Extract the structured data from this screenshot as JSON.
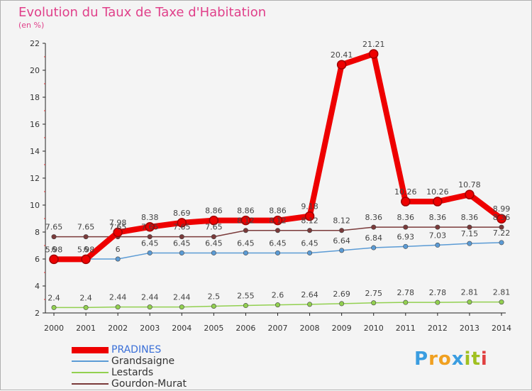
{
  "header": {
    "title": "Evolution du Taux de Taxe d'Habitation",
    "unit": "(en %)"
  },
  "brand": {
    "letters": [
      "P",
      "r",
      "o",
      "x",
      "i",
      "t",
      "i"
    ],
    "colors": [
      "#3a9de0",
      "#f0a020",
      "#f0a020",
      "#3a9de0",
      "#a0c020",
      "#a0c020",
      "#e04040"
    ]
  },
  "chart_data": {
    "type": "line",
    "title": "Evolution du Taux de Taxe d'Habitation",
    "ylabel": "(en %)",
    "xlabel": "",
    "ylim": [
      2,
      22
    ],
    "yticks": [
      2,
      4,
      6,
      8,
      10,
      12,
      14,
      16,
      18,
      20,
      22
    ],
    "grid": false,
    "legend_position": "bottom-left",
    "categories": [
      "2000",
      "2001",
      "2002",
      "2003",
      "2004",
      "2005",
      "2006",
      "2007",
      "2008",
      "2009",
      "2010",
      "2011",
      "2012",
      "2013",
      "2014"
    ],
    "series": [
      {
        "name": "PRADINES",
        "color": "#ee0000",
        "values": [
          5.98,
          5.98,
          7.98,
          8.38,
          8.69,
          8.86,
          8.86,
          8.86,
          9.18,
          20.41,
          21.21,
          10.26,
          10.26,
          10.78,
          8.99
        ],
        "labels": [
          "5.98",
          "5.98",
          "7.98",
          "8.38",
          "8.69",
          "8.86",
          "8.86",
          "8.86",
          "9.18",
          "20.41",
          "21.21",
          "10.26",
          "10.26",
          "10.78",
          "8.99"
        ]
      },
      {
        "name": "Grandsaigne",
        "color": "#5b9bd5",
        "values": [
          6,
          6,
          6,
          6.45,
          6.45,
          6.45,
          6.45,
          6.45,
          6.45,
          6.64,
          6.84,
          6.93,
          7.03,
          7.15,
          7.22
        ],
        "labels": [
          "6",
          "6",
          "6",
          "6.45",
          "6.45",
          "6.45",
          "6.45",
          "6.45",
          "6.45",
          "6.64",
          "6.84",
          "6.93",
          "7.03",
          "7.15",
          "7.22"
        ]
      },
      {
        "name": "Lestards",
        "color": "#92d050",
        "values": [
          2.4,
          2.4,
          2.44,
          2.44,
          2.44,
          2.5,
          2.55,
          2.6,
          2.64,
          2.69,
          2.75,
          2.78,
          2.78,
          2.81,
          2.81
        ],
        "labels": [
          "2.4",
          "2.4",
          "2.44",
          "2.44",
          "2.44",
          "2.5",
          "2.55",
          "2.6",
          "2.64",
          "2.69",
          "2.75",
          "2.78",
          "2.78",
          "2.81",
          "2.81"
        ]
      },
      {
        "name": "Gourdon-Murat",
        "color": "#7a3a3a",
        "values": [
          7.65,
          7.65,
          7.65,
          7.65,
          7.65,
          7.65,
          8.12,
          8.12,
          8.12,
          8.12,
          8.36,
          8.36,
          8.36,
          8.36,
          8.36
        ],
        "labels": [
          "7.65",
          "7.65",
          "7.65",
          "7.65",
          "7.65",
          "7.65",
          "8.12",
          "8.12",
          "8.12",
          "8.12",
          "8.36",
          "8.36",
          "8.36",
          "8.36",
          "8.36"
        ]
      }
    ]
  }
}
